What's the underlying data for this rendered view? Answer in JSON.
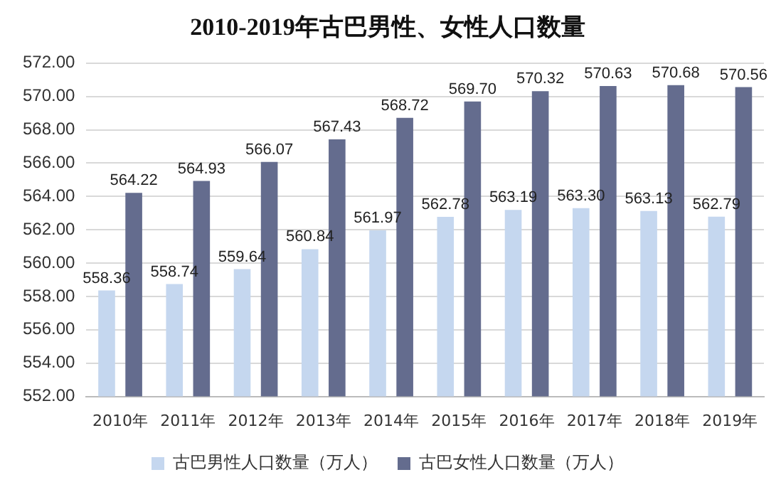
{
  "chart_data": {
    "type": "bar",
    "title": "2010-2019年古巴男性、女性人口数量",
    "categories": [
      "2010年",
      "2011年",
      "2012年",
      "2013年",
      "2014年",
      "2015年",
      "2016年",
      "2017年",
      "2018年",
      "2019年"
    ],
    "series": [
      {
        "name": "古巴男性人口数量（万人）",
        "color": "#c5d7ef",
        "values": [
          558.36,
          558.74,
          559.64,
          560.84,
          561.97,
          562.78,
          563.19,
          563.3,
          563.13,
          562.79
        ],
        "value_labels": [
          "558.36",
          "558.74",
          "559.64",
          "560.84",
          "561.97",
          "562.78",
          "563.19",
          "563.30",
          "563.13",
          "562.79"
        ]
      },
      {
        "name": "古巴女性人口数量（万人）",
        "color": "#646c8e",
        "values": [
          564.22,
          564.93,
          566.07,
          567.43,
          568.72,
          569.7,
          570.32,
          570.63,
          570.68,
          570.56
        ],
        "value_labels": [
          "564.22",
          "564.93",
          "566.07",
          "567.43",
          "568.72",
          "569.70",
          "570.32",
          "570.63",
          "570.68",
          "570.56"
        ]
      }
    ],
    "ylim": [
      552,
      572
    ],
    "yticks": [
      {
        "value": 552,
        "label": "552.00"
      },
      {
        "value": 554,
        "label": "554.00"
      },
      {
        "value": 556,
        "label": "556.00"
      },
      {
        "value": 558,
        "label": "558.00"
      },
      {
        "value": 560,
        "label": "560.00"
      },
      {
        "value": 562,
        "label": "562.00"
      },
      {
        "value": 564,
        "label": "564.00"
      },
      {
        "value": 566,
        "label": "566.00"
      },
      {
        "value": 568,
        "label": "568.00"
      },
      {
        "value": 570,
        "label": "570.00"
      },
      {
        "value": 572,
        "label": "572.00"
      }
    ],
    "grid": "y",
    "legend": "bottom"
  }
}
